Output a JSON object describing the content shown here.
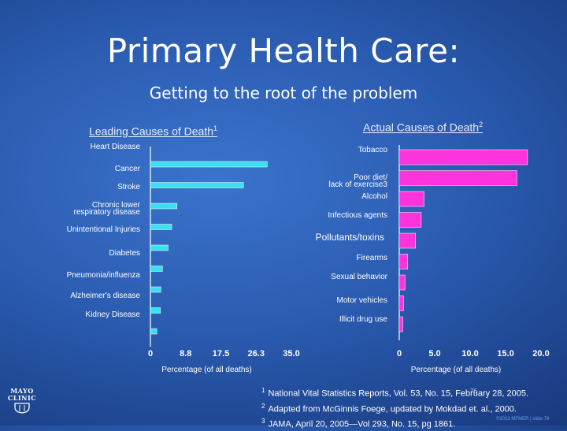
{
  "slide": {
    "title": "Primary Health Care:",
    "subtitle": "Getting to the root of the problem",
    "page_number": "76",
    "copyright": "©2013 MFMER | slide-76",
    "logo_lines": [
      "MAYO",
      "CLINIC"
    ]
  },
  "footnotes": [
    {
      "marker": "1",
      "text": "National Vital Statistics Reports, Vol. 53, No. 15, February 28, 2005."
    },
    {
      "marker": "2",
      "text": "Adapted from McGinnis Foege, updated by Mokdad et. al., 2000."
    },
    {
      "marker": "3",
      "text": "JAMA, April 20, 2005—Vol 293, No. 15, pg 1861."
    }
  ],
  "colors": {
    "left_bar": "#38e0f2",
    "right_bar": "#ff33dd",
    "axis": "#ffffff"
  },
  "chart_data": [
    {
      "type": "bar",
      "orientation": "horizontal",
      "title": "Leading Causes of Death",
      "title_sup": "1",
      "xlabel": "Percentage (of all deaths)",
      "xlim": [
        0,
        35
      ],
      "xticks": [
        "0",
        "8.8",
        "17.5",
        "26.3",
        "35.0"
      ],
      "categories": [
        "Heart Disease",
        "Cancer",
        "Stroke",
        "Chronic lower respiratory disease",
        "Unintentional Injuries",
        "Diabetes",
        "Pneumonia/influenza",
        "Alzheimer's disease",
        "Kidney Disease"
      ],
      "values": [
        29.0,
        23.1,
        6.6,
        5.3,
        4.4,
        3.0,
        2.6,
        2.5,
        1.6
      ]
    },
    {
      "type": "bar",
      "orientation": "horizontal",
      "title": "Actual Causes of Death",
      "title_sup": "2",
      "xlabel": "Percentage (of all deaths)",
      "xlim": [
        0,
        20
      ],
      "xticks": [
        "0",
        "5.0",
        "10.0",
        "15.0",
        "20.0"
      ],
      "categories": [
        "Tobacco",
        "Poor diet/ lack of exercise3",
        "Alcohol",
        "Infectious agents",
        "Pollutants/toxins",
        "Firearms",
        "Sexual behavior",
        "Motor vehicles",
        "Illicit drug use"
      ],
      "values": [
        18.1,
        16.6,
        3.5,
        3.1,
        2.3,
        1.2,
        0.8,
        0.6,
        0.5
      ]
    }
  ]
}
